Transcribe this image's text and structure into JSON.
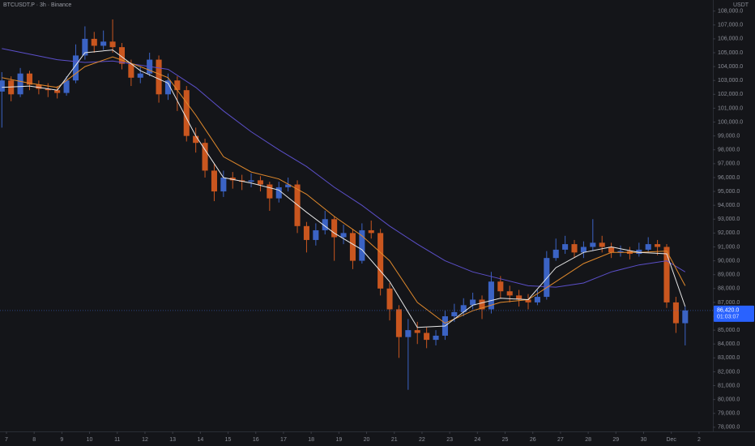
{
  "chart_data": {
    "type": "candlestick",
    "title": "BTCUSDT.P · 3h · Binance",
    "currency": "USDT",
    "up_color": "#3b63c4",
    "down_color": "#c9561f",
    "grid": false,
    "xlim": [
      -5.6,
      612
    ],
    "ylim": [
      77700,
      108800
    ],
    "xticks": [
      {
        "value": 0,
        "label": "7"
      },
      {
        "value": 24,
        "label": "8"
      },
      {
        "value": 48,
        "label": "9"
      },
      {
        "value": 72,
        "label": "10"
      },
      {
        "value": 96,
        "label": "11"
      },
      {
        "value": 120,
        "label": "12"
      },
      {
        "value": 144,
        "label": "13"
      },
      {
        "value": 168,
        "label": "14"
      },
      {
        "value": 192,
        "label": "15"
      },
      {
        "value": 216,
        "label": "16"
      },
      {
        "value": 240,
        "label": "17"
      },
      {
        "value": 264,
        "label": "18"
      },
      {
        "value": 288,
        "label": "19"
      },
      {
        "value": 312,
        "label": "20"
      },
      {
        "value": 336,
        "label": "21"
      },
      {
        "value": 360,
        "label": "22"
      },
      {
        "value": 384,
        "label": "23"
      },
      {
        "value": 408,
        "label": "24"
      },
      {
        "value": 432,
        "label": "25"
      },
      {
        "value": 456,
        "label": "26"
      },
      {
        "value": 480,
        "label": "27"
      },
      {
        "value": 504,
        "label": "28"
      },
      {
        "value": 528,
        "label": "29"
      },
      {
        "value": 552,
        "label": "30"
      },
      {
        "value": 576,
        "label": "Dec"
      },
      {
        "value": 600,
        "label": "2"
      }
    ],
    "yticks": [
      {
        "value": 78000,
        "label": "78,000.0"
      },
      {
        "value": 79000,
        "label": "79,000.0"
      },
      {
        "value": 80000,
        "label": "80,000.0"
      },
      {
        "value": 81000,
        "label": "81,000.0"
      },
      {
        "value": 82000,
        "label": "82,000.0"
      },
      {
        "value": 83000,
        "label": "83,000.0"
      },
      {
        "value": 84000,
        "label": "84,000.0"
      },
      {
        "value": 85000,
        "label": "85,000.0"
      },
      {
        "value": 86000,
        "label": "86,000.0"
      },
      {
        "value": 87000,
        "label": "87,000.0"
      },
      {
        "value": 88000,
        "label": "88,000.0"
      },
      {
        "value": 89000,
        "label": "89,000.0"
      },
      {
        "value": 90000,
        "label": "90,000.0"
      },
      {
        "value": 91000,
        "label": "91,000.0"
      },
      {
        "value": 92000,
        "label": "92,000.0"
      },
      {
        "value": 93000,
        "label": "93,000.0"
      },
      {
        "value": 94000,
        "label": "94,000.0"
      },
      {
        "value": 95000,
        "label": "95,000.0"
      },
      {
        "value": 96000,
        "label": "96,000.0"
      },
      {
        "value": 97000,
        "label": "97,000.0"
      },
      {
        "value": 98000,
        "label": "98,000.0"
      },
      {
        "value": 99000,
        "label": "99,000.0"
      },
      {
        "value": 100000,
        "label": "100,000.0"
      },
      {
        "value": 101000,
        "label": "101,000.0"
      },
      {
        "value": 102000,
        "label": "102,000.0"
      },
      {
        "value": 103000,
        "label": "103,000.0"
      },
      {
        "value": 104000,
        "label": "104,000.0"
      },
      {
        "value": 105000,
        "label": "105,000.0"
      },
      {
        "value": 106000,
        "label": "106,000.0"
      },
      {
        "value": 107000,
        "label": "107,000.0"
      },
      {
        "value": 108000,
        "label": "108,000.0"
      }
    ],
    "candles": {
      "x": [
        -4,
        4,
        12,
        20,
        28,
        36,
        44,
        52,
        60,
        68,
        76,
        84,
        92,
        100,
        108,
        116,
        124,
        132,
        140,
        148,
        156,
        164,
        172,
        180,
        188,
        196,
        204,
        212,
        220,
        228,
        236,
        244,
        252,
        260,
        268,
        276,
        284,
        292,
        300,
        308,
        316,
        324,
        332,
        340,
        348,
        356,
        364,
        372,
        380,
        388,
        396,
        404,
        412,
        420,
        428,
        436,
        444,
        452,
        460,
        468,
        476,
        484,
        492,
        500,
        508,
        516,
        524,
        532,
        540,
        548,
        556,
        564,
        572,
        580,
        588
      ],
      "open": [
        102200,
        103000,
        102000,
        103500,
        102700,
        102400,
        102300,
        102100,
        103000,
        104800,
        106000,
        105500,
        105800,
        105400,
        104200,
        103200,
        103500,
        104500,
        102000,
        103000,
        102300,
        99000,
        98500,
        96500,
        95000,
        96000,
        95800,
        95700,
        95800,
        95500,
        94500,
        95300,
        95500,
        92500,
        91500,
        92200,
        93000,
        91700,
        92000,
        90000,
        92200,
        92000,
        88000,
        86500,
        84500,
        85000,
        84800,
        84300,
        84600,
        86000,
        86300,
        86800,
        87200,
        86500,
        88500,
        87800,
        87500,
        87200,
        87000,
        87400,
        90200,
        90800,
        91200,
        90600,
        91000,
        91300,
        91000,
        90600,
        90700,
        90500,
        90800,
        91200,
        91000,
        87000,
        85500
      ],
      "high": [
        103600,
        103300,
        103900,
        103700,
        103000,
        102800,
        102600,
        103300,
        105600,
        106900,
        106500,
        106600,
        107400,
        105700,
        104500,
        104000,
        105000,
        104800,
        103500,
        103300,
        102600,
        99600,
        98800,
        97000,
        96500,
        96400,
        96200,
        96300,
        96100,
        95700,
        95700,
        96000,
        95800,
        92800,
        92700,
        93600,
        93200,
        92600,
        92300,
        92700,
        92900,
        92300,
        88400,
        86800,
        85800,
        85600,
        85200,
        85000,
        86400,
        86900,
        87300,
        87700,
        87500,
        89200,
        88900,
        88200,
        87900,
        87600,
        87900,
        90700,
        91600,
        91800,
        91500,
        91400,
        93000,
        91800,
        91300,
        91100,
        91000,
        91300,
        91700,
        91500,
        91200,
        87400,
        86700
      ],
      "low": [
        99600,
        101500,
        101800,
        102300,
        102000,
        101800,
        101700,
        101900,
        102800,
        104500,
        105000,
        105200,
        105000,
        103800,
        102600,
        102800,
        103300,
        101400,
        101600,
        100800,
        98600,
        97800,
        96000,
        94300,
        94600,
        95200,
        95100,
        95300,
        95000,
        93600,
        94200,
        95000,
        92000,
        90600,
        91100,
        91900,
        90000,
        91200,
        89400,
        89800,
        91600,
        87500,
        85700,
        83000,
        80700,
        84000,
        83700,
        83900,
        84300,
        85600,
        86000,
        86500,
        85800,
        86200,
        87300,
        87000,
        86700,
        86500,
        86800,
        87200,
        90000,
        90500,
        90200,
        90200,
        90700,
        90600,
        90200,
        90300,
        90100,
        90300,
        90600,
        90400,
        86600,
        84800,
        83900
      ],
      "close": [
        103000,
        102000,
        103500,
        102700,
        102400,
        102300,
        102100,
        103000,
        104800,
        106000,
        105500,
        105800,
        105400,
        104200,
        103200,
        103500,
        104500,
        102000,
        103000,
        102300,
        99000,
        98500,
        96500,
        95000,
        96000,
        95800,
        95700,
        95800,
        95500,
        94500,
        95300,
        95500,
        92500,
        91500,
        92200,
        93000,
        91700,
        92000,
        90000,
        92200,
        92000,
        88000,
        86500,
        84500,
        85000,
        84800,
        84300,
        84600,
        86000,
        86300,
        86800,
        87200,
        86500,
        88500,
        87800,
        87500,
        87200,
        87000,
        87400,
        90200,
        90800,
        91200,
        90600,
        91000,
        91300,
        91000,
        90600,
        90700,
        90500,
        90800,
        91200,
        91000,
        87000,
        85500,
        86420
      ]
    },
    "lines": [
      {
        "color": "#5b4fc9",
        "x": [
          -4,
          20,
          44,
          68,
          92,
          116,
          140,
          164,
          188,
          212,
          236,
          260,
          284,
          308,
          332,
          356,
          380,
          404,
          428,
          452,
          476,
          500,
          524,
          548,
          572,
          588
        ],
        "values": [
          105300,
          104900,
          104500,
          104300,
          104400,
          104100,
          103800,
          102500,
          100800,
          99300,
          98000,
          96800,
          95300,
          94000,
          92500,
          91200,
          90000,
          89200,
          88700,
          88200,
          88100,
          88400,
          89200,
          89700,
          90000,
          89200
        ]
      },
      {
        "color": "#e0892c",
        "x": [
          -4,
          20,
          44,
          68,
          92,
          116,
          140,
          164,
          188,
          212,
          236,
          260,
          284,
          308,
          332,
          356,
          380,
          404,
          428,
          452,
          476,
          500,
          524,
          548,
          572,
          588
        ],
        "values": [
          103200,
          102800,
          102500,
          104000,
          104700,
          104000,
          103200,
          100500,
          97500,
          96400,
          95900,
          94800,
          93200,
          91800,
          90000,
          87000,
          85500,
          86400,
          87000,
          87200,
          88500,
          89800,
          90600,
          90600,
          90700,
          88200
        ]
      },
      {
        "color": "#e8e8e8",
        "x": [
          -4,
          20,
          44,
          68,
          92,
          116,
          140,
          164,
          188,
          212,
          236,
          260,
          284,
          308,
          332,
          356,
          380,
          404,
          428,
          452,
          476,
          500,
          524,
          548,
          572,
          588
        ],
        "values": [
          102500,
          102600,
          102300,
          105000,
          105200,
          103700,
          102800,
          99000,
          96000,
          95600,
          95100,
          93500,
          92000,
          90800,
          88500,
          85200,
          85300,
          86800,
          87300,
          87200,
          89500,
          90600,
          91000,
          90600,
          90500,
          86700
        ]
      }
    ],
    "last_price": {
      "value": 86420,
      "label": "86,420.0"
    },
    "countdown": "01:03:07"
  }
}
